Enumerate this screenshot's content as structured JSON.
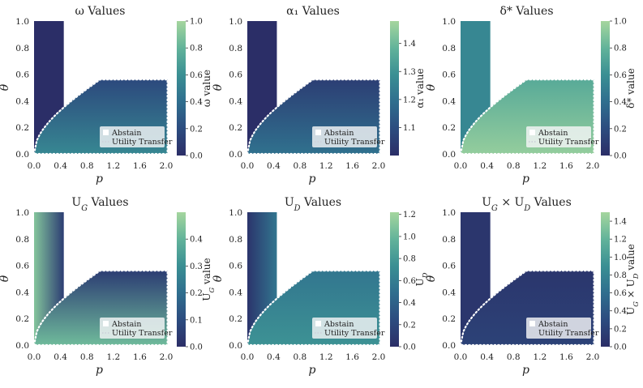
{
  "colors": {
    "cmap": [
      "#2b2e67",
      "#2c4c7f",
      "#2f6e8e",
      "#3a8f93",
      "#62b39a",
      "#a5d69e"
    ],
    "boundary": "#ffffff",
    "legend_bg": "#f4f5f7"
  },
  "legend": {
    "abstain": "Abstain",
    "utility_transfer": "Utility Transfer"
  },
  "chart_data": [
    {
      "type": "heatmap",
      "title": "ω Values",
      "xlabel": "p",
      "ylabel": "θ",
      "cbar_label": "ω value",
      "xlim": [
        0,
        2
      ],
      "ylim": [
        0,
        1
      ],
      "xticks": [
        "0.0",
        "0.4",
        "0.8",
        "1.2",
        "1.6",
        "2.0"
      ],
      "yticks": [
        "0.0",
        "0.2",
        "0.4",
        "0.6",
        "0.8",
        "1.0"
      ],
      "cbar_range": [
        0,
        1
      ],
      "cbar_ticks": [
        "0.0",
        "0.2",
        "0.4",
        "0.6",
        "0.8",
        "1.0"
      ],
      "abstain_value": 0.0,
      "transfer_value_range": [
        0.18,
        0.55
      ],
      "transfer_boundary_p_max": 1.0,
      "transfer_theta_max": 0.56,
      "abstain_p_max": 0.45
    },
    {
      "type": "heatmap",
      "title": "α₁ Values",
      "xlabel": "p",
      "ylabel": "θ",
      "cbar_label": "α₁ value",
      "xlim": [
        0,
        2
      ],
      "ylim": [
        0,
        1
      ],
      "xticks": [
        "0.0",
        "0.4",
        "0.8",
        "1.2",
        "1.6",
        "2.0"
      ],
      "yticks": [
        "0.0",
        "0.2",
        "0.4",
        "0.6",
        "0.8",
        "1.0"
      ],
      "cbar_range": [
        1.0,
        1.48
      ],
      "cbar_ticks": [
        "1.1",
        "1.2",
        "1.3",
        "1.4"
      ],
      "abstain_value": 1.0,
      "transfer_value_range": [
        1.05,
        1.2
      ],
      "transfer_boundary_p_max": 1.0,
      "transfer_theta_max": 0.56,
      "abstain_p_max": 0.45
    },
    {
      "type": "heatmap",
      "title": "δ* Values",
      "xlabel": "p",
      "ylabel": "θ",
      "cbar_label": "δ* value",
      "xlim": [
        0,
        2
      ],
      "ylim": [
        0,
        1
      ],
      "xticks": [
        "0.0",
        "0.4",
        "0.8",
        "1.2",
        "1.6",
        "2.0"
      ],
      "yticks": [
        "0.0",
        "0.2",
        "0.4",
        "0.6",
        "0.8",
        "1.0"
      ],
      "cbar_range": [
        0,
        1
      ],
      "cbar_ticks": [
        "0.0",
        "0.2",
        "0.4",
        "0.6",
        "0.8",
        "1.0"
      ],
      "abstain_value": 0.55,
      "transfer_value_range": [
        0.75,
        0.95
      ],
      "transfer_boundary_p_max": 1.0,
      "transfer_theta_max": 0.56,
      "abstain_p_max": 0.45
    },
    {
      "type": "heatmap",
      "title": "U_G Values",
      "xlabel": "p",
      "ylabel": "θ",
      "cbar_label": "U_G value",
      "xlim": [
        0,
        2
      ],
      "ylim": [
        0,
        1
      ],
      "xticks": [
        "0.0",
        "0.4",
        "0.8",
        "1.2",
        "1.6",
        "2.0"
      ],
      "yticks": [
        "0.0",
        "0.2",
        "0.4",
        "0.6",
        "0.8",
        "1.0"
      ],
      "cbar_range": [
        0,
        0.5
      ],
      "cbar_ticks": [
        "0.0",
        "0.1",
        "0.2",
        "0.3",
        "0.4"
      ],
      "abstain_value_range": [
        0.45,
        0.05
      ],
      "transfer_value_range": [
        0.05,
        0.42
      ],
      "transfer_boundary_p_max": 1.0,
      "transfer_theta_max": 0.56,
      "abstain_p_max": 0.45
    },
    {
      "type": "heatmap",
      "title": "U_D Values",
      "xlabel": "p",
      "ylabel": "θ",
      "cbar_label": "U_D",
      "xlim": [
        0,
        2
      ],
      "ylim": [
        0,
        1
      ],
      "xticks": [
        "0.0",
        "0.4",
        "0.8",
        "1.2",
        "1.6",
        "2.0"
      ],
      "yticks": [
        "0.0",
        "0.2",
        "0.4",
        "0.6",
        "0.8",
        "1.0"
      ],
      "cbar_range": [
        0,
        1.22
      ],
      "cbar_ticks": [
        "0.0",
        "0.2",
        "0.4",
        "0.6",
        "0.8",
        "1.0",
        "1.2"
      ],
      "abstain_value_range": [
        0.05,
        0.55
      ],
      "transfer_value_range": [
        0.55,
        0.75
      ],
      "transfer_boundary_p_max": 1.0,
      "transfer_theta_max": 0.56,
      "abstain_p_max": 0.45
    },
    {
      "type": "heatmap",
      "title": "U_G × U_D Values",
      "xlabel": "p",
      "ylabel": "θ",
      "cbar_label": "U_G × U_D value",
      "xlim": [
        0,
        2
      ],
      "ylim": [
        0,
        1
      ],
      "xticks": [
        "0.0",
        "0.4",
        "0.8",
        "1.2",
        "1.6",
        "2.0"
      ],
      "yticks": [
        "0.0",
        "0.2",
        "0.4",
        "0.6",
        "0.8",
        "1.0"
      ],
      "cbar_range": [
        0,
        1.5
      ],
      "cbar_ticks": [
        "0.0",
        "0.2",
        "0.4",
        "0.6",
        "0.8",
        "1.0",
        "1.2",
        "1.4"
      ],
      "abstain_value": 0.08,
      "transfer_value_range": [
        0.08,
        0.2
      ],
      "transfer_boundary_p_max": 1.0,
      "transfer_theta_max": 0.56,
      "abstain_p_max": 0.45
    }
  ]
}
